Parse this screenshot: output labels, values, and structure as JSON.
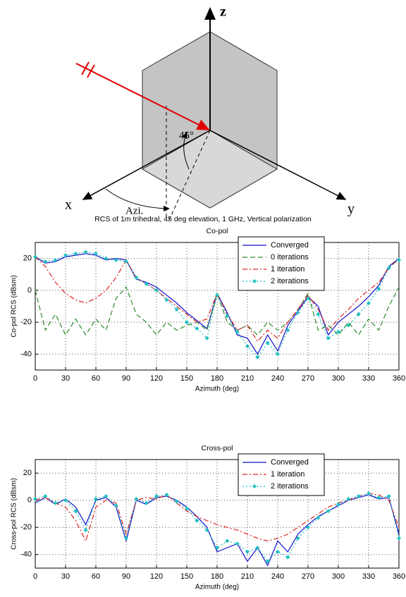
{
  "diagram": {
    "z_label": "z",
    "x_label": "x",
    "y_label": "y",
    "angle_label": "45°",
    "azimuth_label": "Azi."
  },
  "figure_title": "RCS of 1m trihedral, 45 deg elevation, 1 GHz, Vertical polarization",
  "chart_data": [
    {
      "type": "line",
      "title": "Co-pol",
      "xlabel": "Azimuth (deg)",
      "ylabel": "Co-pol RCS (dBsm)",
      "x": [
        0,
        10,
        20,
        30,
        40,
        50,
        60,
        70,
        80,
        90,
        100,
        110,
        120,
        130,
        140,
        150,
        160,
        170,
        180,
        190,
        200,
        210,
        220,
        230,
        240,
        250,
        260,
        270,
        280,
        290,
        300,
        310,
        320,
        330,
        340,
        350,
        360
      ],
      "series": [
        {
          "name": "Converged",
          "color": "#1010c8",
          "dash": "solid",
          "values": [
            21,
            17,
            18,
            21,
            22,
            23,
            22,
            19,
            20,
            19,
            7,
            5,
            2,
            -3,
            -8,
            -14,
            -19,
            -24,
            -2,
            -14,
            -28,
            -30,
            -40,
            -28,
            -38,
            -22,
            -13,
            -4,
            -10,
            -28,
            -20,
            -15,
            -10,
            -4,
            3,
            15,
            20
          ]
        },
        {
          "name": "0 iterations",
          "color": "#2a8a2a",
          "dash": "dashed",
          "values": [
            0,
            -25,
            -15,
            -28,
            -18,
            -28,
            -18,
            -25,
            -5,
            2,
            -15,
            -20,
            -28,
            -20,
            -25,
            -22,
            -20,
            -25,
            -2,
            -20,
            -25,
            -22,
            -28,
            -20,
            -25,
            -20,
            -12,
            -2,
            -25,
            -22,
            -28,
            -20,
            -28,
            -18,
            -25,
            -10,
            2
          ]
        },
        {
          "name": "1 iteration",
          "color": "#e02020",
          "dash": "dashdot",
          "values": [
            21,
            15,
            5,
            -2,
            -6,
            -8,
            -5,
            0,
            8,
            19,
            8,
            4,
            0,
            -5,
            -10,
            -15,
            -20,
            -18,
            -2,
            -15,
            -25,
            -22,
            -32,
            -25,
            -30,
            -20,
            -12,
            -3,
            -12,
            -25,
            -18,
            -12,
            -5,
            0,
            5,
            14,
            20
          ]
        },
        {
          "name": "2 iterations",
          "color": "#20c0c0",
          "dash": "dotted",
          "marker": "diamond",
          "values": [
            21,
            18,
            19,
            22,
            23,
            24,
            23,
            20,
            19,
            18,
            8,
            4,
            0,
            -6,
            -12,
            -20,
            -24,
            -30,
            -3,
            -16,
            -26,
            -35,
            -42,
            -33,
            -40,
            -25,
            -14,
            -5,
            -15,
            -30,
            -26,
            -22,
            -15,
            -8,
            1,
            14,
            19
          ]
        }
      ],
      "xlim": [
        0,
        360
      ],
      "xticks": [
        0,
        30,
        60,
        90,
        120,
        150,
        180,
        210,
        240,
        270,
        300,
        330,
        360
      ],
      "ylim": [
        -50,
        30
      ],
      "yticks": [
        -40,
        -20,
        0,
        20
      ],
      "grid": true,
      "legend": "upper right"
    },
    {
      "type": "line",
      "title": "Cross-pol",
      "xlabel": "Azimuth (deg)",
      "ylabel": "Cross-pol RCS (dBsm)",
      "x": [
        0,
        10,
        20,
        30,
        40,
        50,
        60,
        70,
        80,
        90,
        100,
        110,
        120,
        130,
        140,
        150,
        160,
        170,
        180,
        190,
        200,
        210,
        220,
        230,
        240,
        250,
        260,
        270,
        280,
        290,
        300,
        310,
        320,
        330,
        340,
        350,
        360
      ],
      "series": [
        {
          "name": "Converged",
          "color": "#1010c8",
          "dash": "solid",
          "values": [
            -2,
            2,
            -3,
            1,
            -5,
            -18,
            0,
            2,
            -5,
            -30,
            0,
            -3,
            2,
            3,
            0,
            -5,
            -12,
            -20,
            -38,
            -35,
            -32,
            -45,
            -35,
            -48,
            -30,
            -38,
            -25,
            -18,
            -12,
            -8,
            -4,
            0,
            2,
            4,
            1,
            2,
            -25
          ]
        },
        {
          "name": "1 iteration",
          "color": "#e02020",
          "dash": "dashdot",
          "values": [
            0,
            2,
            -2,
            -5,
            -15,
            -30,
            -5,
            0,
            -2,
            -25,
            0,
            2,
            1,
            4,
            -2,
            -8,
            -12,
            -15,
            -18,
            -20,
            -22,
            -25,
            -28,
            -30,
            -28,
            -25,
            -20,
            -15,
            -10,
            -5,
            -2,
            0,
            3,
            5,
            4,
            0,
            -20
          ]
        },
        {
          "name": "2 iterations",
          "color": "#20c0c0",
          "dash": "dotted",
          "marker": "diamond",
          "values": [
            1,
            3,
            -2,
            0,
            -8,
            -22,
            1,
            3,
            -4,
            -28,
            1,
            -2,
            3,
            4,
            -1,
            -6,
            -15,
            -22,
            -35,
            -30,
            -32,
            -38,
            -35,
            -45,
            -38,
            -42,
            -28,
            -20,
            -13,
            -8,
            -3,
            1,
            3,
            5,
            2,
            3,
            -28
          ]
        }
      ],
      "xlim": [
        0,
        360
      ],
      "xticks": [
        0,
        30,
        60,
        90,
        120,
        150,
        180,
        210,
        240,
        270,
        300,
        330,
        360
      ],
      "ylim": [
        -50,
        30
      ],
      "yticks": [
        -40,
        -20,
        0,
        20
      ],
      "grid": true,
      "legend": "upper right"
    }
  ]
}
